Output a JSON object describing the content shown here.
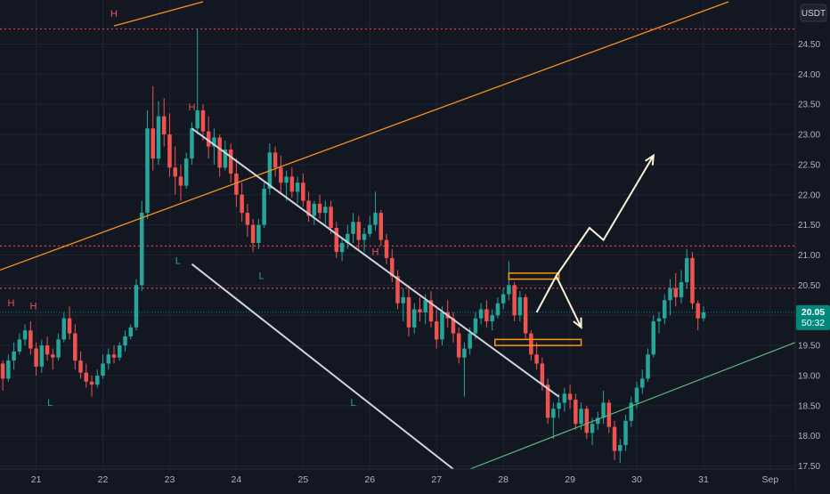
{
  "chart_data": {
    "type": "candlestick",
    "title": "",
    "currency_label": "USDT",
    "x_ticks": [
      "21",
      "22",
      "23",
      "24",
      "25",
      "26",
      "27",
      "28",
      "29",
      "30",
      "31",
      "Sep"
    ],
    "y_ticks": [
      "17.50",
      "18.00",
      "18.50",
      "19.00",
      "19.50",
      "20.00",
      "20.50",
      "21.00",
      "21.50",
      "22.00",
      "22.50",
      "23.00",
      "23.50",
      "24.00",
      "24.50"
    ],
    "y_range": [
      17.45,
      25.2
    ],
    "x_range": [
      "Aug 20 11:00",
      "Sep 1 09:00"
    ],
    "last_price": "20.05",
    "countdown": "50:32",
    "colors": {
      "background": "#131722",
      "grid": "#1f2433",
      "bull": "#26a69a",
      "bear": "#ef5350",
      "resistance": "#f23645",
      "trend_orange": "#f7931a",
      "trend_green": "#5fb87e",
      "channel": "#d1d4dc",
      "box": "#ff9800",
      "projection": "#fff4dc",
      "axis_text": "#b2b5be",
      "price_tag": "#00897b"
    },
    "horizontal_levels": [
      24.75,
      21.15,
      20.45
    ],
    "candles_ohlc": [
      [
        19.2,
        19.25,
        18.75,
        18.95
      ],
      [
        18.95,
        19.35,
        18.9,
        19.25
      ],
      [
        19.25,
        19.55,
        19.1,
        19.4
      ],
      [
        19.4,
        19.7,
        19.35,
        19.6
      ],
      [
        19.6,
        19.85,
        19.5,
        19.75
      ],
      [
        19.75,
        19.9,
        19.35,
        19.45
      ],
      [
        19.45,
        19.55,
        19.0,
        19.15
      ],
      [
        19.15,
        19.6,
        19.05,
        19.5
      ],
      [
        19.5,
        19.65,
        19.25,
        19.35
      ],
      [
        19.35,
        19.45,
        19.1,
        19.3
      ],
      [
        19.3,
        19.7,
        19.25,
        19.6
      ],
      [
        19.6,
        20.05,
        19.55,
        19.95
      ],
      [
        19.95,
        20.15,
        19.6,
        19.7
      ],
      [
        19.7,
        19.85,
        19.1,
        19.25
      ],
      [
        19.25,
        19.4,
        18.95,
        19.05
      ],
      [
        19.05,
        19.2,
        18.8,
        18.9
      ],
      [
        18.9,
        19.0,
        18.65,
        18.85
      ],
      [
        18.85,
        19.1,
        18.8,
        19.0
      ],
      [
        19.0,
        19.35,
        18.95,
        19.2
      ],
      [
        19.2,
        19.45,
        19.1,
        19.35
      ],
      [
        19.35,
        19.5,
        19.2,
        19.3
      ],
      [
        19.3,
        19.55,
        19.25,
        19.5
      ],
      [
        19.5,
        19.75,
        19.4,
        19.65
      ],
      [
        19.65,
        19.85,
        19.6,
        19.8
      ],
      [
        19.8,
        20.6,
        19.75,
        20.5
      ],
      [
        20.5,
        21.9,
        20.4,
        21.7
      ],
      [
        21.7,
        23.4,
        21.6,
        23.1
      ],
      [
        23.1,
        23.8,
        22.4,
        22.6
      ],
      [
        22.6,
        23.55,
        22.5,
        23.3
      ],
      [
        23.3,
        23.6,
        22.8,
        23.0
      ],
      [
        23.0,
        23.35,
        22.3,
        22.45
      ],
      [
        22.45,
        22.8,
        22.0,
        22.3
      ],
      [
        22.3,
        22.5,
        21.9,
        22.15
      ],
      [
        22.15,
        22.7,
        22.1,
        22.6
      ],
      [
        22.6,
        23.2,
        22.5,
        23.1
      ],
      [
        23.1,
        24.75,
        23.0,
        23.4
      ],
      [
        23.4,
        23.5,
        22.9,
        23.05
      ],
      [
        23.05,
        23.3,
        22.6,
        22.8
      ],
      [
        22.8,
        23.1,
        22.5,
        22.95
      ],
      [
        22.95,
        23.0,
        22.3,
        22.45
      ],
      [
        22.45,
        22.9,
        22.4,
        22.75
      ],
      [
        22.75,
        22.85,
        22.2,
        22.35
      ],
      [
        22.35,
        22.6,
        21.8,
        22.0
      ],
      [
        22.0,
        22.2,
        21.55,
        21.7
      ],
      [
        21.7,
        21.85,
        21.3,
        21.5
      ],
      [
        21.5,
        21.6,
        21.05,
        21.2
      ],
      [
        21.2,
        21.6,
        21.1,
        21.5
      ],
      [
        21.5,
        22.2,
        21.45,
        22.1
      ],
      [
        22.1,
        22.85,
        22.0,
        22.7
      ],
      [
        22.7,
        22.8,
        22.3,
        22.45
      ],
      [
        22.45,
        22.65,
        22.0,
        22.2
      ],
      [
        22.2,
        22.4,
        21.9,
        22.3
      ],
      [
        22.3,
        22.45,
        21.95,
        22.05
      ],
      [
        22.05,
        22.3,
        21.85,
        22.2
      ],
      [
        22.2,
        22.35,
        21.8,
        21.9
      ],
      [
        21.9,
        22.05,
        21.55,
        21.65
      ],
      [
        21.65,
        21.9,
        21.5,
        21.85
      ],
      [
        21.85,
        22.0,
        21.6,
        21.7
      ],
      [
        21.7,
        21.9,
        21.5,
        21.8
      ],
      [
        21.8,
        21.9,
        21.35,
        21.45
      ],
      [
        21.45,
        21.55,
        20.95,
        21.05
      ],
      [
        21.05,
        21.3,
        20.9,
        21.2
      ],
      [
        21.2,
        21.5,
        21.1,
        21.35
      ],
      [
        21.35,
        21.7,
        21.2,
        21.55
      ],
      [
        21.55,
        21.65,
        21.1,
        21.25
      ],
      [
        21.25,
        21.45,
        21.05,
        21.35
      ],
      [
        21.35,
        21.65,
        21.3,
        21.5
      ],
      [
        21.5,
        22.05,
        21.4,
        21.7
      ],
      [
        21.7,
        21.75,
        21.15,
        21.25
      ],
      [
        21.25,
        21.35,
        20.85,
        20.95
      ],
      [
        20.95,
        21.1,
        20.55,
        20.65
      ],
      [
        20.65,
        20.75,
        20.1,
        20.2
      ],
      [
        20.2,
        20.45,
        19.9,
        20.3
      ],
      [
        20.3,
        20.5,
        19.65,
        19.8
      ],
      [
        19.8,
        20.2,
        19.7,
        20.1
      ],
      [
        20.1,
        20.3,
        19.9,
        20.05
      ],
      [
        20.05,
        20.35,
        19.85,
        20.25
      ],
      [
        20.25,
        20.4,
        19.8,
        19.9
      ],
      [
        19.9,
        20.1,
        19.45,
        19.6
      ],
      [
        19.6,
        20.15,
        19.5,
        20.05
      ],
      [
        20.05,
        20.25,
        19.8,
        19.95
      ],
      [
        19.95,
        20.05,
        19.55,
        19.7
      ],
      [
        19.7,
        19.8,
        19.2,
        19.3
      ],
      [
        19.3,
        19.55,
        18.65,
        19.45
      ],
      [
        19.45,
        19.8,
        19.35,
        19.7
      ],
      [
        19.7,
        20.05,
        19.6,
        19.95
      ],
      [
        19.95,
        20.2,
        19.85,
        20.1
      ],
      [
        20.1,
        20.25,
        19.8,
        19.9
      ],
      [
        19.9,
        20.1,
        19.75,
        20.0
      ],
      [
        20.0,
        20.3,
        19.95,
        20.2
      ],
      [
        20.2,
        20.45,
        20.1,
        20.35
      ],
      [
        20.35,
        20.9,
        20.25,
        20.5
      ],
      [
        20.5,
        20.55,
        19.9,
        20.0
      ],
      [
        20.0,
        20.4,
        19.9,
        20.3
      ],
      [
        20.3,
        20.35,
        19.6,
        19.7
      ],
      [
        19.7,
        19.75,
        19.25,
        19.35
      ],
      [
        19.35,
        19.55,
        19.1,
        19.2
      ],
      [
        19.2,
        19.3,
        18.75,
        18.85
      ],
      [
        18.85,
        18.95,
        18.2,
        18.3
      ],
      [
        18.3,
        18.55,
        17.95,
        18.45
      ],
      [
        18.45,
        18.7,
        18.3,
        18.55
      ],
      [
        18.55,
        18.8,
        18.4,
        18.7
      ],
      [
        18.7,
        18.85,
        18.45,
        18.6
      ],
      [
        18.6,
        18.7,
        18.1,
        18.2
      ],
      [
        18.2,
        18.55,
        18.1,
        18.45
      ],
      [
        18.45,
        18.5,
        17.95,
        18.05
      ],
      [
        18.05,
        18.3,
        17.85,
        18.2
      ],
      [
        18.2,
        18.4,
        18.1,
        18.3
      ],
      [
        18.3,
        18.75,
        18.2,
        18.55
      ],
      [
        18.55,
        18.6,
        18.05,
        18.15
      ],
      [
        18.15,
        18.25,
        17.6,
        17.75
      ],
      [
        17.75,
        17.95,
        17.55,
        17.85
      ],
      [
        17.85,
        18.35,
        17.75,
        18.25
      ],
      [
        18.25,
        18.65,
        18.15,
        18.55
      ],
      [
        18.55,
        18.9,
        18.45,
        18.8
      ],
      [
        18.8,
        19.1,
        18.7,
        18.95
      ],
      [
        18.95,
        19.45,
        18.9,
        19.35
      ],
      [
        19.35,
        20.0,
        19.3,
        19.9
      ],
      [
        19.9,
        20.05,
        19.7,
        19.95
      ],
      [
        19.95,
        20.35,
        19.85,
        20.25
      ],
      [
        20.25,
        20.6,
        20.0,
        20.45
      ],
      [
        20.45,
        20.7,
        20.15,
        20.3
      ],
      [
        20.3,
        20.75,
        20.2,
        20.55
      ],
      [
        20.55,
        21.1,
        20.45,
        20.95
      ],
      [
        20.95,
        21.05,
        20.1,
        20.2
      ],
      [
        20.2,
        20.25,
        19.75,
        19.95
      ],
      [
        19.95,
        20.15,
        19.9,
        20.05
      ]
    ],
    "annotations": {
      "highs": [
        {
          "text": "H",
          "date": "Aug 22 04:00",
          "price": 24.95
        },
        {
          "text": "H",
          "date": "Aug 23 08:00",
          "price": 23.4
        },
        {
          "text": "H",
          "date": "Aug 26 02:00",
          "price": 21.0
        },
        {
          "text": "H",
          "date": "Aug 20 15:00",
          "price": 20.15
        },
        {
          "text": "H",
          "date": "Aug 20 23:00",
          "price": 20.1
        }
      ],
      "lows": [
        {
          "text": "L",
          "date": "Aug 21 05:00",
          "price": 18.5
        },
        {
          "text": "L",
          "date": "Aug 23 03:00",
          "price": 20.85
        },
        {
          "text": "L",
          "date": "Aug 24 09:00",
          "price": 20.6
        },
        {
          "text": "L",
          "date": "Aug 25 18:00",
          "price": 18.5
        }
      ]
    },
    "drawings": {
      "orange_trendline": [
        [
          "Aug 20 11:00",
          20.75
        ],
        [
          "Aug 31 09:00",
          25.2
        ]
      ],
      "orange_trendline_steep": [
        [
          "Aug 22 04:00",
          24.8
        ],
        [
          "Aug 23 12:00",
          25.2
        ]
      ],
      "channel_upper": [
        [
          "Aug 23 08:00",
          23.1
        ],
        [
          "Aug 28 20:00",
          18.65
        ]
      ],
      "channel_lower": [
        [
          "Aug 23 08:00",
          20.85
        ],
        [
          "Aug 27 06:00",
          17.45
        ]
      ],
      "green_trendline": [
        [
          "Aug 27 12:00",
          17.45
        ],
        [
          "Sep 1 09:00",
          19.55
        ]
      ],
      "boxes": [
        {
          "from": "Aug 28 02:00",
          "to": "Aug 28 20:00",
          "low": 20.6,
          "high": 20.7
        },
        {
          "from": "Aug 27 21:00",
          "to": "Aug 29 04:00",
          "low": 19.5,
          "high": 19.6
        }
      ],
      "projection_down": [
        [
          "Aug 28 12:00",
          20.05
        ],
        [
          "Aug 28 19:00",
          20.65
        ],
        [
          "Aug 29 04:00",
          19.8
        ]
      ],
      "projection_up": [
        [
          "Aug 28 19:00",
          20.65
        ],
        [
          "Aug 29 07:00",
          21.45
        ],
        [
          "Aug 29 12:00",
          21.25
        ],
        [
          "Aug 30 06:00",
          22.65
        ]
      ]
    }
  }
}
